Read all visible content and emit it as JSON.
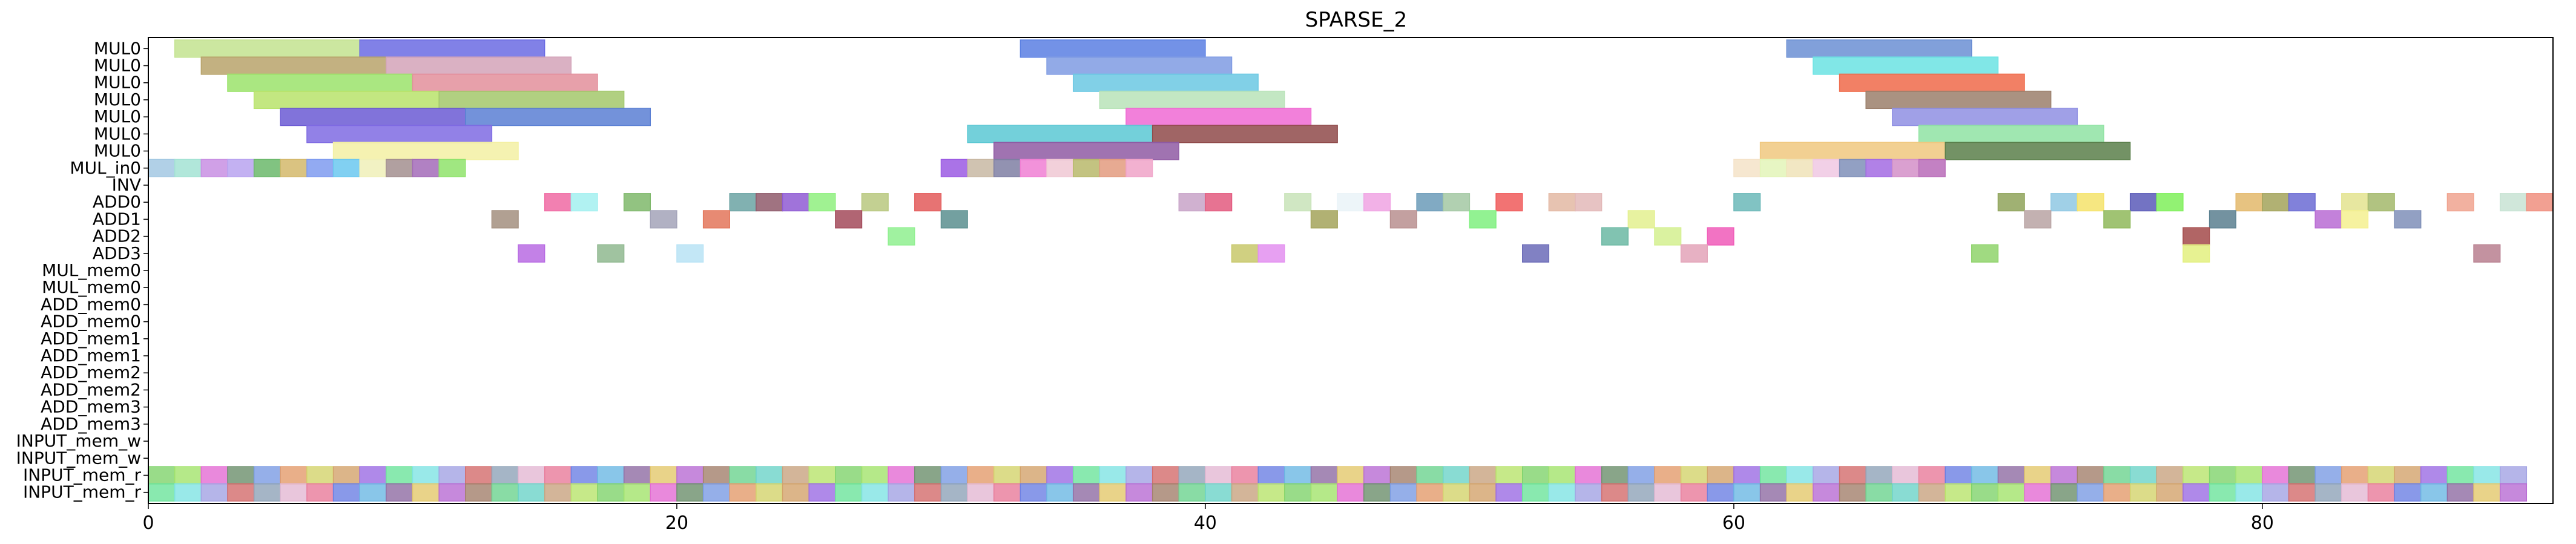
{
  "chart_data": {
    "type": "gantt",
    "title": "SPARSE_2",
    "xlabel": "",
    "ylabel": "",
    "xlim": [
      0,
      91
    ],
    "xticks": [
      0,
      20,
      40,
      60,
      80
    ],
    "grid": false,
    "legend": "none",
    "rows": [
      "MUL0",
      "MUL0",
      "MUL0",
      "MUL0",
      "MUL0",
      "MUL0",
      "MUL0",
      "MUL_in0",
      "INV",
      "ADD0",
      "ADD1",
      "ADD2",
      "ADD3",
      "MUL_mem0",
      "MUL_mem0",
      "ADD_mem0",
      "ADD_mem0",
      "ADD_mem1",
      "ADD_mem1",
      "ADD_mem2",
      "ADD_mem2",
      "ADD_mem3",
      "ADD_mem3",
      "INPUT_mem_w",
      "INPUT_mem_w",
      "INPUT_mem_r",
      "INPUT_mem_r"
    ],
    "palette": [
      "#7fd36b",
      "#e87b9a",
      "#7a9be3",
      "#e3c86b",
      "#9b6be3",
      "#6bd3c8",
      "#d36b6b",
      "#a3e36b",
      "#6b7fe3",
      "#e39b6b",
      "#b86bd3",
      "#6be39b",
      "#c8a37f",
      "#8fa3b8",
      "#e36bd3",
      "#6bb8e3",
      "#d3d36b",
      "#a37f6b",
      "#7fe3e3",
      "#b8e36b",
      "#e3b8d3",
      "#6b8f6b",
      "#8f6ba3",
      "#d3a36b",
      "#6bd38f",
      "#a3a3e3"
    ],
    "tasks": [
      {
        "row": 0,
        "start": 1,
        "end": 8,
        "color": "#c3e38f"
      },
      {
        "row": 0,
        "start": 8,
        "end": 15,
        "color": "#6b6be3"
      },
      {
        "row": 0,
        "start": 33,
        "end": 40,
        "color": "#5a7fe3"
      },
      {
        "row": 0,
        "start": 62,
        "end": 69,
        "color": "#6b8fd3"
      },
      {
        "row": 1,
        "start": 2,
        "end": 9,
        "color": "#b8a36b"
      },
      {
        "row": 1,
        "start": 9,
        "end": 16,
        "color": "#d3a3b8"
      },
      {
        "row": 1,
        "start": 34,
        "end": 41,
        "color": "#7f9be3"
      },
      {
        "row": 1,
        "start": 63,
        "end": 70,
        "color": "#6be3e3"
      },
      {
        "row": 2,
        "start": 3,
        "end": 10,
        "color": "#9be36b"
      },
      {
        "row": 2,
        "start": 10,
        "end": 17,
        "color": "#e38f9b"
      },
      {
        "row": 2,
        "start": 35,
        "end": 42,
        "color": "#6bc8e3"
      },
      {
        "row": 2,
        "start": 64,
        "end": 71,
        "color": "#f06a4a"
      },
      {
        "row": 3,
        "start": 4,
        "end": 11,
        "color": "#b8e36b"
      },
      {
        "row": 3,
        "start": 11,
        "end": 18,
        "color": "#a3c86b"
      },
      {
        "row": 3,
        "start": 36,
        "end": 43,
        "color": "#b8e3b8"
      },
      {
        "row": 3,
        "start": 65,
        "end": 72,
        "color": "#9b7f6b"
      },
      {
        "row": 4,
        "start": 5,
        "end": 12,
        "color": "#6b5ad3"
      },
      {
        "row": 4,
        "start": 12,
        "end": 19,
        "color": "#5a7fd3"
      },
      {
        "row": 4,
        "start": 37,
        "end": 44,
        "color": "#f06ad3"
      },
      {
        "row": 4,
        "start": 66,
        "end": 73,
        "color": "#8f8fe3"
      },
      {
        "row": 5,
        "start": 6,
        "end": 13,
        "color": "#7f6be3"
      },
      {
        "row": 5,
        "start": 31,
        "end": 38,
        "color": "#5ac8d3"
      },
      {
        "row": 5,
        "start": 38,
        "end": 45,
        "color": "#8f4a4a"
      },
      {
        "row": 5,
        "start": 67,
        "end": 74,
        "color": "#8fe3a3"
      },
      {
        "row": 6,
        "start": 7,
        "end": 14,
        "color": "#f3f0a3"
      },
      {
        "row": 6,
        "start": 32,
        "end": 39,
        "color": "#8f5aa3"
      },
      {
        "row": 6,
        "start": 61,
        "end": 68,
        "color": "#f0c87f"
      },
      {
        "row": 6,
        "start": 68,
        "end": 75,
        "color": "#5a7f4a"
      },
      {
        "row": 7,
        "start": 0,
        "end": 1,
        "color": "#a3c8e3"
      },
      {
        "row": 7,
        "start": 1,
        "end": 2,
        "color": "#a3e3d3"
      },
      {
        "row": 7,
        "start": 2,
        "end": 3,
        "color": "#c88fe3"
      },
      {
        "row": 7,
        "start": 3,
        "end": 4,
        "color": "#b8a3f0"
      },
      {
        "row": 7,
        "start": 4,
        "end": 5,
        "color": "#6bb86b"
      },
      {
        "row": 7,
        "start": 5,
        "end": 6,
        "color": "#d3b86b"
      },
      {
        "row": 7,
        "start": 6,
        "end": 7,
        "color": "#7f9bf0"
      },
      {
        "row": 7,
        "start": 7,
        "end": 8,
        "color": "#6bc8f0"
      },
      {
        "row": 7,
        "start": 8,
        "end": 9,
        "color": "#f0f0b8"
      },
      {
        "row": 7,
        "start": 9,
        "end": 10,
        "color": "#a38f8f"
      },
      {
        "row": 7,
        "start": 10,
        "end": 11,
        "color": "#a36bb8"
      },
      {
        "row": 7,
        "start": 11,
        "end": 12,
        "color": "#8fe36b"
      },
      {
        "row": 7,
        "start": 30,
        "end": 31,
        "color": "#9b5ae3"
      },
      {
        "row": 7,
        "start": 31,
        "end": 32,
        "color": "#c8b8a3"
      },
      {
        "row": 7,
        "start": 32,
        "end": 33,
        "color": "#7f7fa3"
      },
      {
        "row": 7,
        "start": 33,
        "end": 34,
        "color": "#f07fd3"
      },
      {
        "row": 7,
        "start": 34,
        "end": 35,
        "color": "#f0c8d3"
      },
      {
        "row": 7,
        "start": 35,
        "end": 36,
        "color": "#b8b86b"
      },
      {
        "row": 7,
        "start": 36,
        "end": 37,
        "color": "#e39b7f"
      },
      {
        "row": 7,
        "start": 37,
        "end": 38,
        "color": "#f0a3c8"
      },
      {
        "row": 7,
        "start": 60,
        "end": 61,
        "color": "#f5e3c8"
      },
      {
        "row": 7,
        "start": 61,
        "end": 62,
        "color": "#e3f5b8"
      },
      {
        "row": 7,
        "start": 62,
        "end": 63,
        "color": "#f0e3b8"
      },
      {
        "row": 7,
        "start": 63,
        "end": 64,
        "color": "#f0c8e3"
      },
      {
        "row": 7,
        "start": 64,
        "end": 65,
        "color": "#7f8fb8"
      },
      {
        "row": 7,
        "start": 65,
        "end": 66,
        "color": "#a36be3"
      },
      {
        "row": 7,
        "start": 66,
        "end": 67,
        "color": "#d38fc8"
      },
      {
        "row": 7,
        "start": 67,
        "end": 68,
        "color": "#b86bb8"
      },
      {
        "row": 9,
        "start": 15,
        "end": 16,
        "color": "#f06aa3"
      },
      {
        "row": 9,
        "start": 16,
        "end": 17,
        "color": "#a3f0f0"
      },
      {
        "row": 9,
        "start": 18,
        "end": 19,
        "color": "#7fb86b"
      },
      {
        "row": 9,
        "start": 22,
        "end": 23,
        "color": "#6ba3a3"
      },
      {
        "row": 9,
        "start": 23,
        "end": 24,
        "color": "#8f5a6b"
      },
      {
        "row": 9,
        "start": 24,
        "end": 25,
        "color": "#8f5ad3"
      },
      {
        "row": 9,
        "start": 25,
        "end": 26,
        "color": "#8ff07f"
      },
      {
        "row": 9,
        "start": 27,
        "end": 28,
        "color": "#b8c87f"
      },
      {
        "row": 9,
        "start": 29,
        "end": 30,
        "color": "#e35a5a"
      },
      {
        "row": 9,
        "start": 39,
        "end": 40,
        "color": "#c8a3c8"
      },
      {
        "row": 9,
        "start": 40,
        "end": 41,
        "color": "#e35a7f"
      },
      {
        "row": 9,
        "start": 43,
        "end": 44,
        "color": "#c8e3b8"
      },
      {
        "row": 9,
        "start": 45,
        "end": 46,
        "color": "#eaf3f8"
      },
      {
        "row": 9,
        "start": 46,
        "end": 47,
        "color": "#f0a3e3"
      },
      {
        "row": 9,
        "start": 48,
        "end": 49,
        "color": "#6b9bb8"
      },
      {
        "row": 9,
        "start": 49,
        "end": 50,
        "color": "#a3c8a3"
      },
      {
        "row": 9,
        "start": 51,
        "end": 52,
        "color": "#f05a5a"
      },
      {
        "row": 9,
        "start": 53,
        "end": 54,
        "color": "#e3b8a3"
      },
      {
        "row": 9,
        "start": 54,
        "end": 55,
        "color": "#e3b8b8"
      },
      {
        "row": 9,
        "start": 60,
        "end": 61,
        "color": "#6bb8b8"
      },
      {
        "row": 9,
        "start": 70,
        "end": 71,
        "color": "#8fa35a"
      },
      {
        "row": 9,
        "start": 72,
        "end": 73,
        "color": "#8fc8e3"
      },
      {
        "row": 9,
        "start": 73,
        "end": 74,
        "color": "#f5e36b"
      },
      {
        "row": 9,
        "start": 75,
        "end": 76,
        "color": "#5a5ab8"
      },
      {
        "row": 9,
        "start": 76,
        "end": 77,
        "color": "#7ff05a"
      },
      {
        "row": 9,
        "start": 79,
        "end": 80,
        "color": "#e3b86b"
      },
      {
        "row": 9,
        "start": 80,
        "end": 81,
        "color": "#a3a35a"
      },
      {
        "row": 9,
        "start": 81,
        "end": 82,
        "color": "#6b6bd3"
      },
      {
        "row": 9,
        "start": 83,
        "end": 84,
        "color": "#e3e38f"
      },
      {
        "row": 9,
        "start": 84,
        "end": 85,
        "color": "#a3b86b"
      },
      {
        "row": 9,
        "start": 87,
        "end": 88,
        "color": "#f0a38f"
      },
      {
        "row": 9,
        "start": 89,
        "end": 90,
        "color": "#c8e3d3"
      },
      {
        "row": 9,
        "start": 90,
        "end": 91,
        "color": "#f08f7f"
      },
      {
        "row": 10,
        "start": 13,
        "end": 14,
        "color": "#a38f7f"
      },
      {
        "row": 10,
        "start": 19,
        "end": 20,
        "color": "#a3a3b8"
      },
      {
        "row": 10,
        "start": 21,
        "end": 22,
        "color": "#e3765a"
      },
      {
        "row": 10,
        "start": 26,
        "end": 27,
        "color": "#a34a5a"
      },
      {
        "row": 10,
        "start": 30,
        "end": 31,
        "color": "#5a8f8f"
      },
      {
        "row": 10,
        "start": 44,
        "end": 45,
        "color": "#a3a35a"
      },
      {
        "row": 10,
        "start": 47,
        "end": 48,
        "color": "#b88f8f"
      },
      {
        "row": 10,
        "start": 50,
        "end": 51,
        "color": "#7ff07f"
      },
      {
        "row": 10,
        "start": 56,
        "end": 57,
        "color": "#e3f08f"
      },
      {
        "row": 10,
        "start": 71,
        "end": 72,
        "color": "#b8a3a3"
      },
      {
        "row": 10,
        "start": 74,
        "end": 75,
        "color": "#8fb85a"
      },
      {
        "row": 10,
        "start": 78,
        "end": 79,
        "color": "#5a7f8f"
      },
      {
        "row": 10,
        "start": 82,
        "end": 83,
        "color": "#b86bd3"
      },
      {
        "row": 10,
        "start": 83,
        "end": 84,
        "color": "#f5f08f"
      },
      {
        "row": 10,
        "start": 85,
        "end": 86,
        "color": "#7f8fb8"
      },
      {
        "row": 11,
        "start": 28,
        "end": 29,
        "color": "#8ff08f"
      },
      {
        "row": 11,
        "start": 55,
        "end": 56,
        "color": "#6bb8a3"
      },
      {
        "row": 11,
        "start": 57,
        "end": 58,
        "color": "#d3f08f"
      },
      {
        "row": 11,
        "start": 59,
        "end": 60,
        "color": "#f05ab8"
      },
      {
        "row": 11,
        "start": 77,
        "end": 78,
        "color": "#a34a4a"
      },
      {
        "row": 12,
        "start": 14,
        "end": 15,
        "color": "#b86be3"
      },
      {
        "row": 12,
        "start": 17,
        "end": 18,
        "color": "#8fb88f"
      },
      {
        "row": 12,
        "start": 20,
        "end": 21,
        "color": "#b8e3f5"
      },
      {
        "row": 12,
        "start": 41,
        "end": 42,
        "color": "#c8c86b"
      },
      {
        "row": 12,
        "start": 42,
        "end": 43,
        "color": "#e38ff0"
      },
      {
        "row": 12,
        "start": 52,
        "end": 53,
        "color": "#6b6bb8"
      },
      {
        "row": 12,
        "start": 58,
        "end": 59,
        "color": "#e3a3b8"
      },
      {
        "row": 12,
        "start": 69,
        "end": 70,
        "color": "#8fd36b"
      },
      {
        "row": 12,
        "start": 77,
        "end": 78,
        "color": "#e3f07f"
      },
      {
        "row": 12,
        "start": 88,
        "end": 89,
        "color": "#b87f8f"
      }
    ]
  }
}
